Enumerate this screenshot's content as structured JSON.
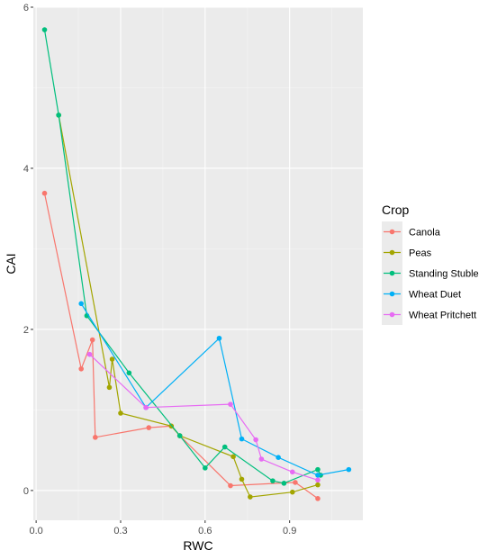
{
  "chart_data": {
    "type": "line",
    "xlabel": "RWC",
    "ylabel": "CAI",
    "xlim": [
      -0.01,
      1.16
    ],
    "ylim": [
      -0.37,
      6.0
    ],
    "x_ticks": [
      0.0,
      0.3,
      0.6,
      0.9
    ],
    "x_tick_labels": [
      "0.0",
      "0.3",
      "0.6",
      "0.9"
    ],
    "y_ticks": [
      0,
      2,
      4,
      6
    ],
    "y_tick_labels": [
      "0",
      "2",
      "4",
      "6"
    ],
    "grid": true,
    "legend": {
      "title": "Crop",
      "position": "right"
    },
    "series": [
      {
        "name": "Canola",
        "color": "#F8766D",
        "points": [
          [
            0.03,
            3.69
          ],
          [
            0.16,
            1.51
          ],
          [
            0.2,
            1.87
          ],
          [
            0.21,
            0.66
          ],
          [
            0.4,
            0.78
          ],
          [
            0.48,
            0.8
          ],
          [
            0.51,
            0.68
          ],
          [
            0.69,
            0.06
          ],
          [
            0.92,
            0.1
          ],
          [
            1.0,
            -0.1
          ]
        ]
      },
      {
        "name": "Peas",
        "color": "#A3A500",
        "points": [
          [
            0.08,
            4.66
          ],
          [
            0.26,
            1.28
          ],
          [
            0.27,
            1.63
          ],
          [
            0.3,
            0.96
          ],
          [
            0.48,
            0.8
          ],
          [
            0.51,
            0.68
          ],
          [
            0.7,
            0.42
          ],
          [
            0.73,
            0.14
          ],
          [
            0.76,
            -0.08
          ],
          [
            0.91,
            -0.02
          ],
          [
            1.0,
            0.07
          ]
        ]
      },
      {
        "name": "Standing Stuble",
        "color": "#00BF7D",
        "points": [
          [
            0.03,
            5.72
          ],
          [
            0.08,
            4.66
          ],
          [
            0.18,
            2.17
          ],
          [
            0.33,
            1.46
          ],
          [
            0.51,
            0.68
          ],
          [
            0.6,
            0.28
          ],
          [
            0.67,
            0.54
          ],
          [
            0.84,
            0.12
          ],
          [
            0.88,
            0.09
          ],
          [
            1.0,
            0.26
          ],
          [
            1.01,
            0.19
          ]
        ]
      },
      {
        "name": "Wheat Duet",
        "color": "#00B0F6",
        "points": [
          [
            0.16,
            2.32
          ],
          [
            0.39,
            1.03
          ],
          [
            0.65,
            1.89
          ],
          [
            0.73,
            0.64
          ],
          [
            0.86,
            0.41
          ],
          [
            1.0,
            0.19
          ],
          [
            1.11,
            0.26
          ]
        ]
      },
      {
        "name": "Wheat Pritchett",
        "color": "#E76BF3",
        "points": [
          [
            0.19,
            1.69
          ],
          [
            0.39,
            1.03
          ],
          [
            0.69,
            1.07
          ],
          [
            0.78,
            0.63
          ],
          [
            0.8,
            0.39
          ],
          [
            0.91,
            0.23
          ],
          [
            1.0,
            0.13
          ]
        ]
      }
    ]
  }
}
